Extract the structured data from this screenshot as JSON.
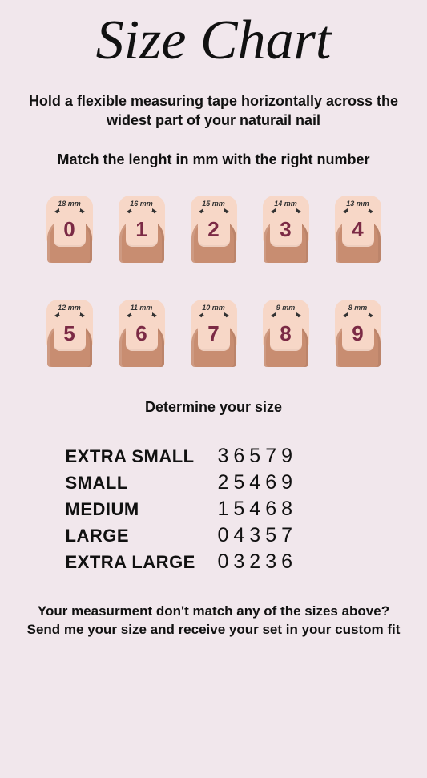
{
  "title": "Size Chart",
  "instruction": "Hold a flexible measuring tape horizontally across the widest part of your naturail nail",
  "match_text": "Match the lenght in mm with the right number",
  "determine_text": "Determine your size",
  "footer_text": "Your measurment don't match any of the sizes above? Send me your size and receive your set in your custom fit",
  "colors": {
    "background": "#f1e7ec",
    "skin": "#c88d71",
    "plate": "#f7d7c7",
    "number": "#7b2a45",
    "text": "#111111"
  },
  "nails_row1": [
    {
      "mm": "18 mm",
      "num": "0"
    },
    {
      "mm": "16 mm",
      "num": "1"
    },
    {
      "mm": "15 mm",
      "num": "2"
    },
    {
      "mm": "14 mm",
      "num": "3"
    },
    {
      "mm": "13 mm",
      "num": "4"
    }
  ],
  "nails_row2": [
    {
      "mm": "12 mm",
      "num": "5"
    },
    {
      "mm": "11 mm",
      "num": "6"
    },
    {
      "mm": "10 mm",
      "num": "7"
    },
    {
      "mm": "9 mm",
      "num": "8"
    },
    {
      "mm": "8 mm",
      "num": "9"
    }
  ],
  "sizes": [
    {
      "label": "EXTRA SMALL",
      "value": "36579"
    },
    {
      "label": "SMALL",
      "value": "25469"
    },
    {
      "label": "MEDIUM",
      "value": "15468"
    },
    {
      "label": "LARGE",
      "value": "04357"
    },
    {
      "label": "EXTRA LARGE",
      "value": "03236"
    }
  ]
}
